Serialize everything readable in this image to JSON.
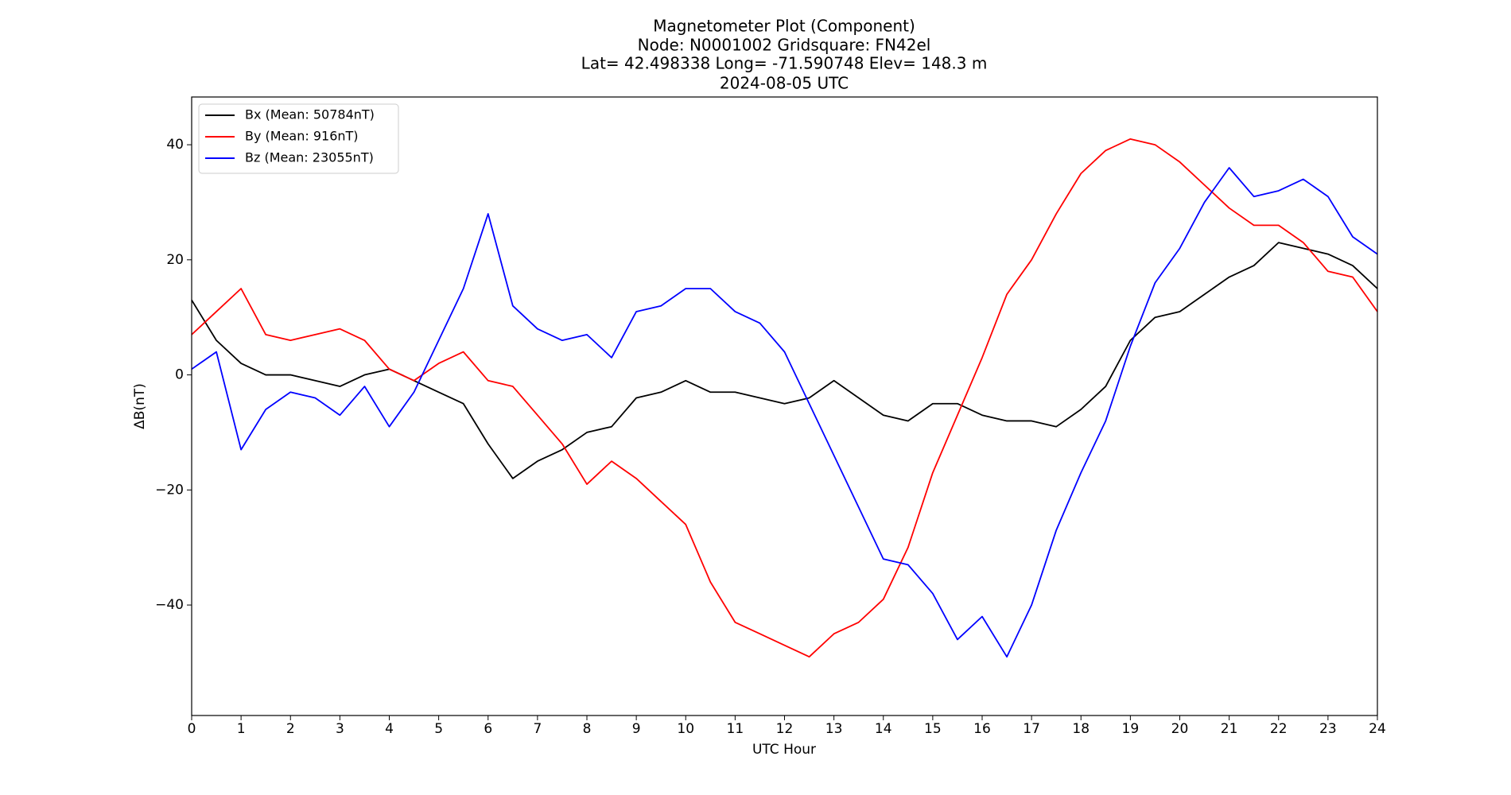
{
  "chart_data": {
    "type": "line",
    "title": [
      "Magnetometer Plot (Component)",
      "Node:  N0001002     Gridsquare:  FN42el",
      "Lat= 42.498338    Long= -71.590748    Elev= 148.3 m",
      "2024-08-05  UTC"
    ],
    "xlabel": "UTC Hour",
    "ylabel": "ΔB(nT)",
    "x": [
      0,
      0.5,
      1,
      1.5,
      2,
      2.5,
      3,
      3.5,
      4,
      4.5,
      5,
      5.5,
      6,
      6.5,
      7,
      7.5,
      8,
      8.5,
      9,
      9.5,
      10,
      10.5,
      11,
      11.5,
      12,
      12.5,
      13,
      13.5,
      14,
      14.5,
      15,
      15.5,
      16,
      16.5,
      17,
      17.5,
      18,
      18.5,
      19,
      19.5,
      20,
      20.5,
      21,
      21.5,
      22,
      22.5,
      23,
      23.5,
      24
    ],
    "series": [
      {
        "name": "Bx (Mean: 50784nT)",
        "color": "#000000",
        "values": [
          13,
          6,
          2,
          0,
          0,
          -1,
          -2,
          0,
          1,
          -1,
          -3,
          -5,
          -12,
          -18,
          -15,
          -13,
          -10,
          -9,
          -4,
          -3,
          -1,
          -3,
          -3,
          -4,
          -5,
          -4,
          -1,
          -4,
          -7,
          -8,
          -5,
          -5,
          -7,
          -8,
          -8,
          -9,
          -6,
          -2,
          6,
          10,
          11,
          14,
          17,
          19,
          23,
          22,
          21,
          19,
          15
        ]
      },
      {
        "name": "By (Mean: 916nT)",
        "color": "#ff0000",
        "values": [
          7,
          11,
          15,
          7,
          6,
          7,
          8,
          6,
          1,
          -1,
          2,
          4,
          -1,
          -2,
          -7,
          -12,
          -19,
          -15,
          -18,
          -22,
          -26,
          -36,
          -43,
          -45,
          -47,
          -49,
          -45,
          -43,
          -39,
          -30,
          -17,
          -7,
          3,
          14,
          20,
          28,
          35,
          39,
          41,
          40,
          37,
          33,
          29,
          26,
          26,
          23,
          18,
          17,
          11
        ]
      },
      {
        "name": "Bz (Mean: 23055nT)",
        "color": "#0000ff",
        "values": [
          1,
          4,
          -13,
          -6,
          -3,
          -4,
          -7,
          -2,
          -9,
          -3,
          6,
          15,
          28,
          12,
          8,
          6,
          7,
          3,
          11,
          12,
          15,
          15,
          11,
          9,
          4,
          -5,
          -14,
          -23,
          -32,
          -33,
          -38,
          -46,
          -42,
          -49,
          -40,
          -27,
          -17,
          -8,
          5,
          16,
          22,
          30,
          36,
          31,
          32,
          34,
          31,
          24,
          21
        ]
      }
    ],
    "xlim": [
      0,
      24
    ],
    "xticks": [
      0,
      1,
      2,
      3,
      4,
      5,
      6,
      7,
      8,
      9,
      10,
      11,
      12,
      13,
      14,
      15,
      16,
      17,
      18,
      19,
      20,
      21,
      22,
      23,
      24
    ],
    "ylim": [
      -59.2,
      48.3
    ],
    "yticks": [
      {
        "value": -40,
        "label": "−40"
      },
      {
        "value": -20,
        "label": "−20"
      },
      0,
      20,
      40
    ],
    "legend": "upper left",
    "grid": false
  }
}
